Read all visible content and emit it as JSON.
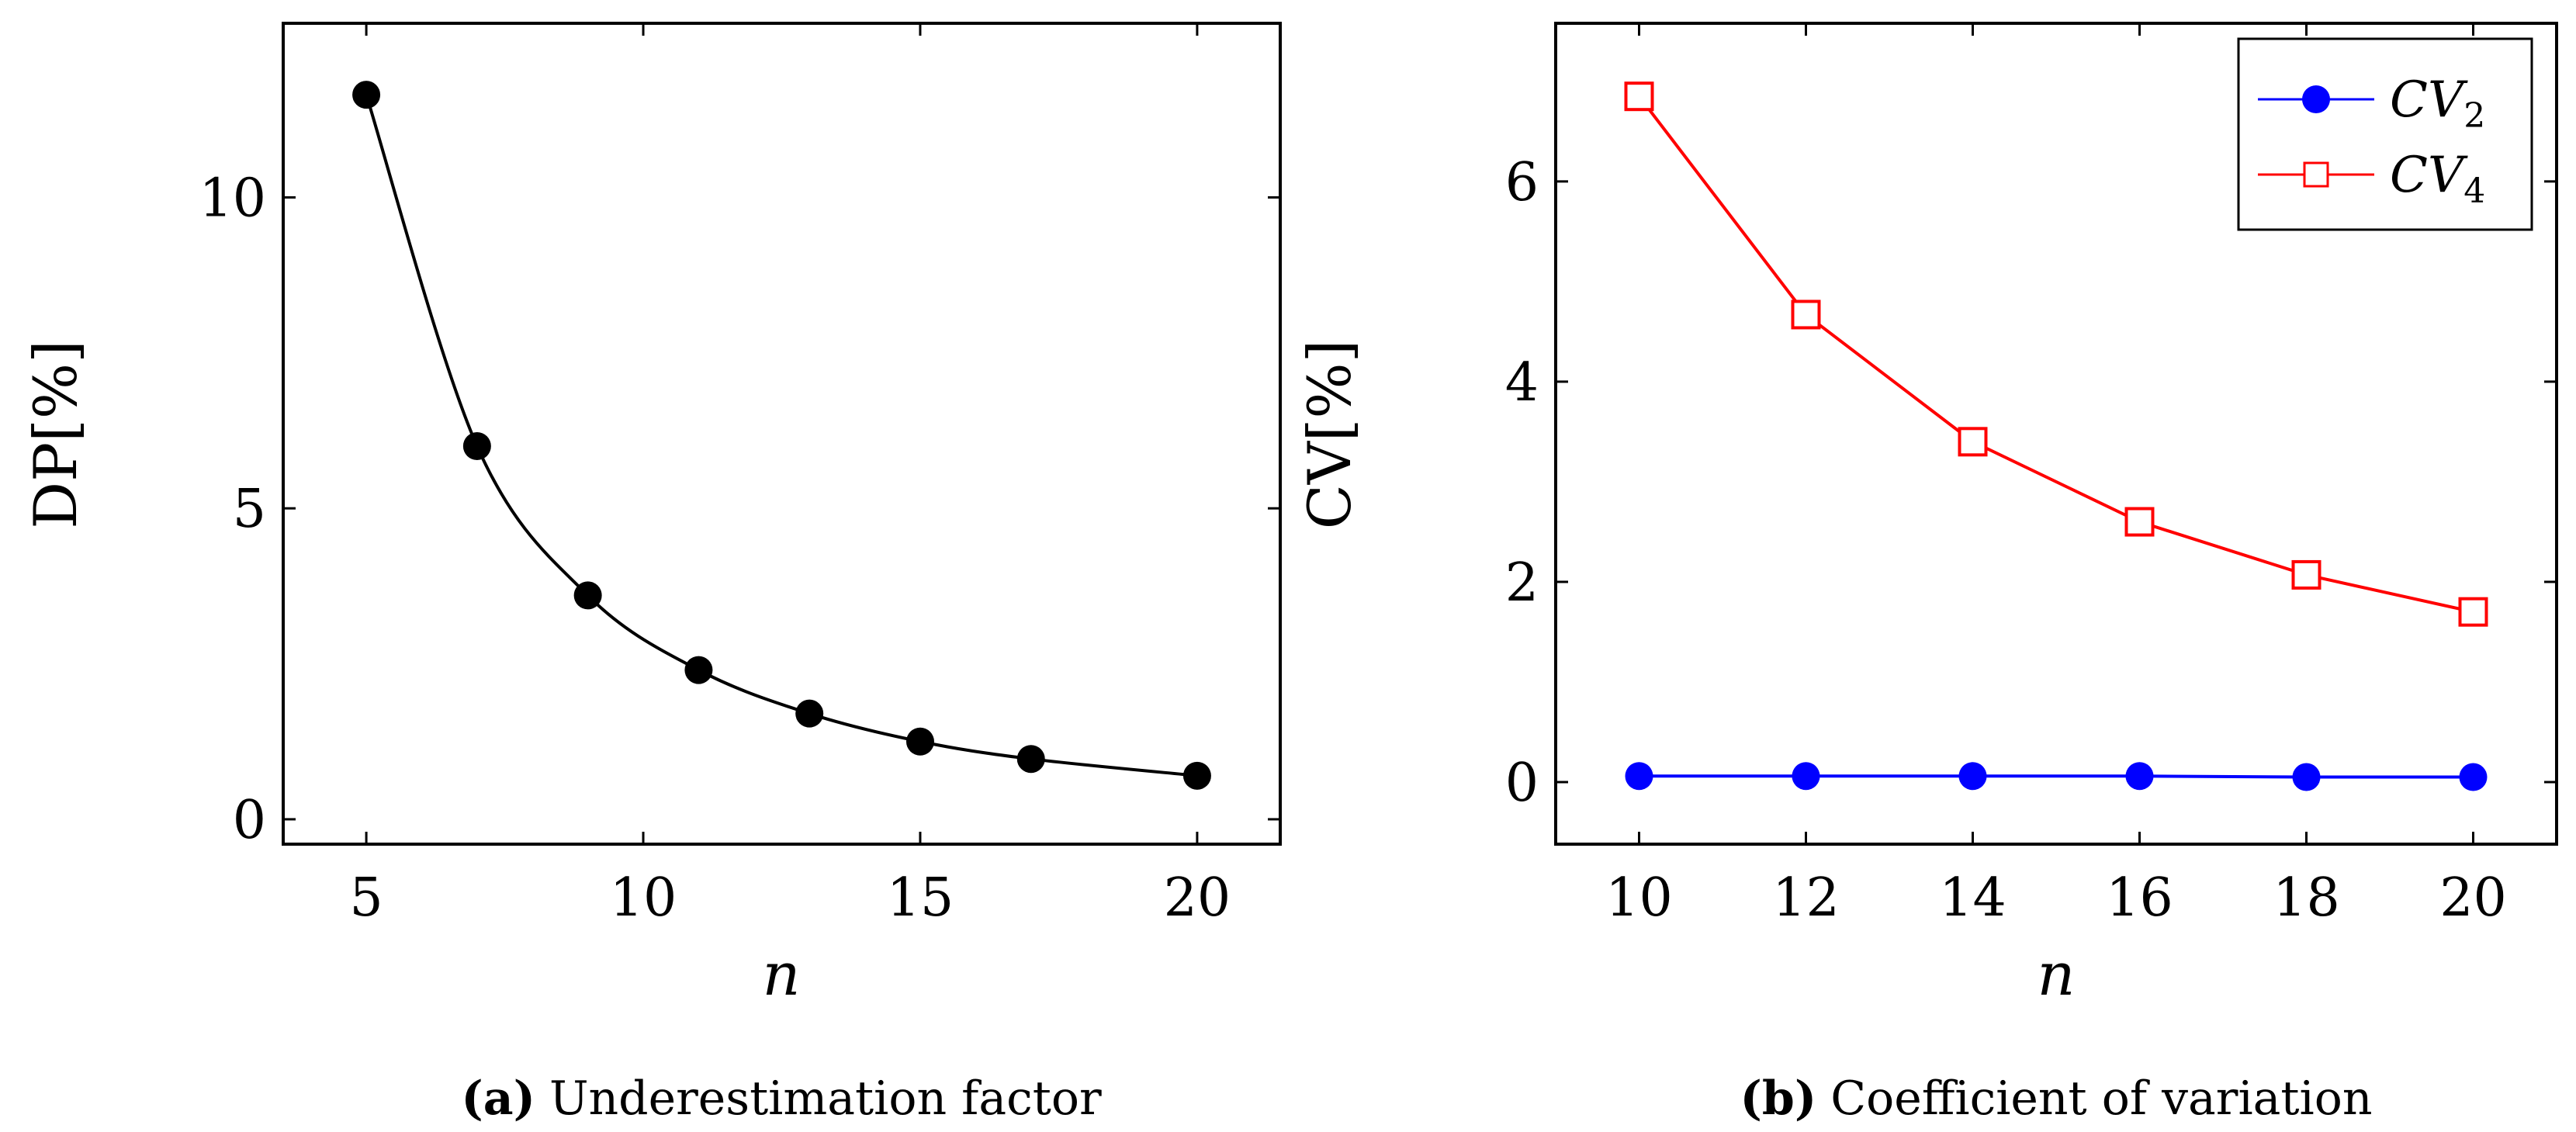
{
  "chart_data": [
    {
      "type": "line",
      "caption_tag": "(a)",
      "caption_text": "Underestimation factor",
      "xlabel": "n",
      "ylabel": "DP[%]",
      "xlim": [
        3.5,
        21.5
      ],
      "ylim": [
        -0.4,
        12.8
      ],
      "xticks": [
        5,
        10,
        15,
        20
      ],
      "xtick_labels": [
        "5",
        "10",
        "15",
        "20"
      ],
      "yticks": [
        0,
        5,
        10
      ],
      "ytick_labels": [
        "0",
        "5",
        "10"
      ],
      "series": [
        {
          "name": "DP",
          "color": "#000000",
          "marker": "filled-circle",
          "x": [
            5,
            7,
            9,
            11,
            13,
            15,
            17,
            20
          ],
          "values": [
            11.65,
            6.0,
            3.6,
            2.4,
            1.7,
            1.25,
            0.97,
            0.7
          ]
        }
      ]
    },
    {
      "type": "line",
      "caption_tag": "(b)",
      "caption_text": "Coefficient of variation",
      "xlabel": "n",
      "ylabel": "CV[%]",
      "xlim": [
        9,
        21
      ],
      "ylim": [
        -0.62,
        7.58
      ],
      "xticks": [
        10,
        12,
        14,
        16,
        18,
        20
      ],
      "xtick_labels": [
        "10",
        "12",
        "14",
        "16",
        "18",
        "20"
      ],
      "yticks": [
        0,
        2,
        4,
        6
      ],
      "ytick_labels": [
        "0",
        "2",
        "4",
        "6"
      ],
      "legend_position": "top-right",
      "series": [
        {
          "name": "CV",
          "name_sub": "2",
          "color": "#0000ff",
          "marker": "filled-circle",
          "x": [
            10,
            12,
            14,
            16,
            18,
            20
          ],
          "values": [
            0.06,
            0.06,
            0.06,
            0.06,
            0.05,
            0.05
          ]
        },
        {
          "name": "CV",
          "name_sub": "4",
          "color": "#ff0000",
          "marker": "open-square",
          "x": [
            10,
            12,
            14,
            16,
            18,
            20
          ],
          "values": [
            6.85,
            4.67,
            3.4,
            2.6,
            2.07,
            1.7
          ]
        }
      ]
    }
  ]
}
